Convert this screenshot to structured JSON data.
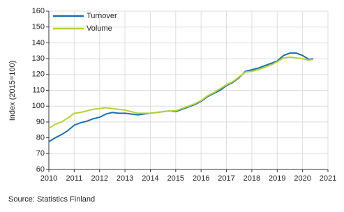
{
  "chart_data": {
    "type": "line",
    "y_label": "Index (2015=100)",
    "source": "Source: Statistics Finland",
    "x": [
      2010.0,
      2010.25,
      2010.5,
      2010.75,
      2011.0,
      2011.25,
      2011.5,
      2011.75,
      2012.0,
      2012.25,
      2012.5,
      2012.75,
      2013.0,
      2013.25,
      2013.5,
      2013.75,
      2014.0,
      2014.25,
      2014.5,
      2014.75,
      2015.0,
      2015.25,
      2015.5,
      2015.75,
      2016.0,
      2016.25,
      2016.5,
      2016.75,
      2017.0,
      2017.25,
      2017.5,
      2017.75,
      2018.0,
      2018.25,
      2018.5,
      2018.75,
      2019.0,
      2019.25,
      2019.5,
      2019.75,
      2020.0,
      2020.25,
      2020.42
    ],
    "series": [
      {
        "name": "Turnover",
        "color": "#1a6fb0",
        "values": [
          77.5,
          80,
          82,
          84.5,
          88,
          89.5,
          90.5,
          92,
          93,
          95,
          96,
          95.5,
          95.5,
          95,
          94.5,
          95,
          95.5,
          96,
          96.5,
          97,
          96.5,
          98,
          99.5,
          101,
          103,
          106,
          108,
          110,
          113,
          115,
          118,
          122,
          123,
          124,
          125.5,
          127,
          128.5,
          132,
          133.5,
          133.5,
          132,
          129.5,
          130
        ]
      },
      {
        "name": "Volume",
        "color": "#b5d334",
        "values": [
          86,
          88.5,
          90,
          92.5,
          95.5,
          96,
          97,
          98,
          98.5,
          99,
          98.5,
          98,
          97.5,
          96.5,
          95.5,
          95.5,
          95.5,
          96,
          96.5,
          97,
          97,
          98.5,
          100,
          101.5,
          103.5,
          106.5,
          108.5,
          111,
          113.5,
          115.5,
          118.5,
          121.5,
          122,
          123,
          124.5,
          126,
          128,
          130.5,
          131,
          130.5,
          130,
          129,
          129.5
        ]
      }
    ],
    "xlim": [
      2010,
      2021
    ],
    "xticks": [
      2010,
      2011,
      2012,
      2013,
      2014,
      2015,
      2016,
      2017,
      2018,
      2019,
      2020,
      2021
    ],
    "ylim": [
      60,
      160
    ],
    "yticks": [
      60,
      70,
      80,
      90,
      100,
      110,
      120,
      130,
      140,
      150,
      160
    ],
    "grid": true,
    "legend": "upper-left"
  }
}
